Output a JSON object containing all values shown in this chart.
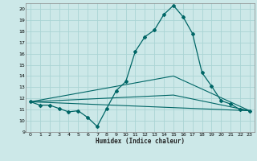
{
  "xlabel": "Humidex (Indice chaleur)",
  "bg_color": "#cce8e8",
  "line_color": "#006666",
  "grid_color": "#aad4d4",
  "xlim": [
    -0.5,
    23.5
  ],
  "ylim": [
    9,
    20.5
  ],
  "xticks": [
    0,
    1,
    2,
    3,
    4,
    5,
    6,
    7,
    8,
    9,
    10,
    11,
    12,
    13,
    14,
    15,
    16,
    17,
    18,
    19,
    20,
    21,
    22,
    23
  ],
  "yticks": [
    9,
    10,
    11,
    12,
    13,
    14,
    15,
    16,
    17,
    18,
    19,
    20
  ],
  "series_main": {
    "x": [
      0,
      1,
      2,
      3,
      4,
      5,
      6,
      7,
      8,
      9,
      10,
      11,
      12,
      13,
      14,
      15,
      16,
      17,
      18,
      19,
      20,
      21,
      22,
      23
    ],
    "y": [
      11.7,
      11.4,
      11.4,
      11.1,
      10.8,
      10.9,
      10.3,
      9.5,
      11.1,
      12.7,
      13.5,
      16.2,
      17.5,
      18.1,
      19.5,
      20.3,
      19.3,
      17.8,
      14.3,
      13.1,
      11.8,
      11.5,
      11.0,
      10.9
    ]
  },
  "series_extra": [
    {
      "x": [
        0,
        23
      ],
      "y": [
        11.7,
        10.9
      ]
    },
    {
      "x": [
        0,
        15,
        23
      ],
      "y": [
        11.7,
        14.0,
        10.9
      ]
    },
    {
      "x": [
        0,
        15,
        23
      ],
      "y": [
        11.7,
        12.3,
        10.9
      ]
    }
  ]
}
